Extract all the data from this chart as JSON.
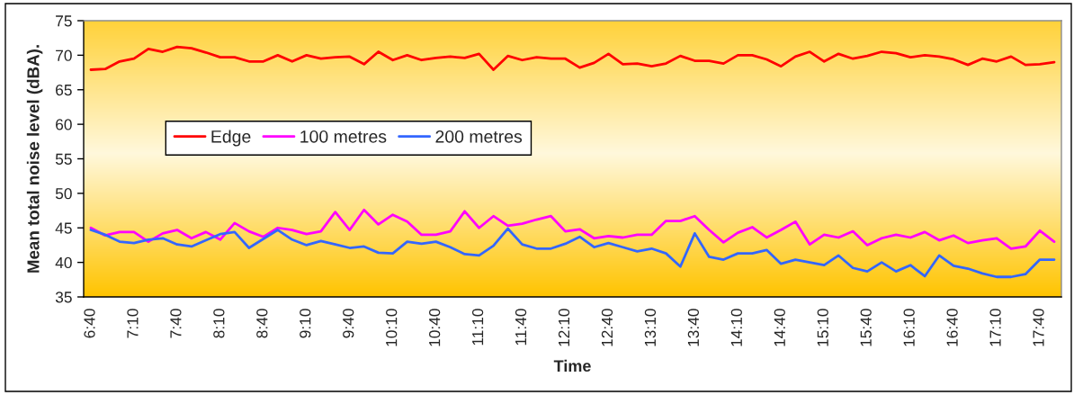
{
  "chart_data": {
    "type": "line",
    "xlabel": "Time",
    "ylabel": "Mean total noise level (dBA).",
    "categories": [
      "6:40",
      null,
      null,
      "7:10",
      null,
      null,
      "7:40",
      null,
      null,
      "8:10",
      null,
      null,
      "8:40",
      null,
      null,
      "9:10",
      null,
      null,
      "9:40",
      null,
      null,
      "10:10",
      null,
      null,
      "10:40",
      null,
      null,
      "11:10",
      null,
      null,
      "11:40",
      null,
      null,
      "12:10",
      null,
      null,
      "12:40",
      null,
      null,
      "13:10",
      null,
      null,
      "13:40",
      null,
      null,
      "14:10",
      null,
      null,
      "14:40",
      null,
      null,
      "15:10",
      null,
      null,
      "15:40",
      null,
      null,
      "16:10",
      null,
      null,
      "16:40",
      null,
      null,
      "17:10",
      null,
      null,
      "17:40",
      null
    ],
    "series": [
      {
        "name": "Edge",
        "color": "#ff0000",
        "values": [
          67.9,
          68.0,
          69.1,
          69.5,
          70.9,
          70.5,
          71.2,
          71.0,
          70.4,
          69.7,
          69.7,
          69.1,
          69.1,
          70.0,
          69.1,
          70.0,
          69.5,
          69.7,
          69.8,
          68.7,
          70.5,
          69.3,
          70.0,
          69.3,
          69.6,
          69.8,
          69.6,
          70.2,
          67.9,
          69.9,
          69.3,
          69.7,
          69.5,
          69.5,
          68.2,
          68.9,
          70.2,
          68.7,
          68.8,
          68.4,
          68.8,
          69.9,
          69.2,
          69.2,
          68.8,
          70.0,
          70.0,
          69.4,
          68.4,
          69.8,
          70.5,
          69.1,
          70.2,
          69.5,
          69.9,
          70.5,
          70.3,
          69.7,
          70.0,
          69.8,
          69.4,
          68.6,
          69.5,
          69.1,
          69.8,
          68.6,
          68.7,
          69.0
        ]
      },
      {
        "name": "100 metres",
        "color": "#ff00ff",
        "values": [
          45.0,
          43.9,
          44.4,
          44.4,
          43.0,
          44.2,
          44.7,
          43.5,
          44.4,
          43.3,
          45.7,
          44.5,
          43.7,
          45.0,
          44.7,
          44.1,
          44.5,
          47.3,
          44.7,
          47.6,
          45.5,
          46.9,
          45.9,
          44.0,
          44.0,
          44.5,
          47.4,
          45.0,
          46.7,
          45.3,
          45.6,
          46.2,
          46.7,
          44.5,
          44.8,
          43.5,
          43.8,
          43.6,
          44.0,
          44.0,
          46.0,
          46.0,
          46.7,
          44.7,
          42.9,
          44.3,
          45.1,
          43.6,
          44.7,
          45.9,
          42.6,
          44.0,
          43.6,
          44.5,
          42.5,
          43.5,
          44.0,
          43.6,
          44.4,
          43.2,
          43.9,
          42.8,
          43.2,
          43.5,
          42.0,
          42.3,
          44.6,
          43.0
        ]
      },
      {
        "name": "200 metres",
        "color": "#3366ff",
        "values": [
          44.7,
          44.0,
          43.0,
          42.8,
          43.3,
          43.5,
          42.6,
          42.3,
          43.2,
          44.1,
          44.4,
          42.1,
          43.4,
          44.7,
          43.3,
          42.5,
          43.1,
          42.6,
          42.1,
          42.3,
          41.4,
          41.3,
          43.0,
          42.7,
          43.0,
          42.2,
          41.2,
          41.0,
          42.4,
          44.9,
          42.6,
          42.0,
          42.0,
          42.7,
          43.7,
          42.2,
          42.8,
          42.2,
          41.6,
          42.0,
          41.3,
          39.4,
          44.2,
          40.8,
          40.4,
          41.3,
          41.3,
          41.8,
          39.8,
          40.4,
          40.0,
          39.6,
          41.0,
          39.2,
          38.7,
          40.0,
          38.7,
          39.6,
          38.0,
          41.0,
          39.5,
          39.1,
          38.4,
          37.9,
          37.9,
          38.3,
          40.4,
          40.4
        ]
      }
    ],
    "ylim": [
      35,
      75
    ],
    "yticks": [
      35,
      40,
      45,
      50,
      55,
      60,
      65,
      70,
      75
    ],
    "legend": "center left",
    "line_style": "solid"
  }
}
